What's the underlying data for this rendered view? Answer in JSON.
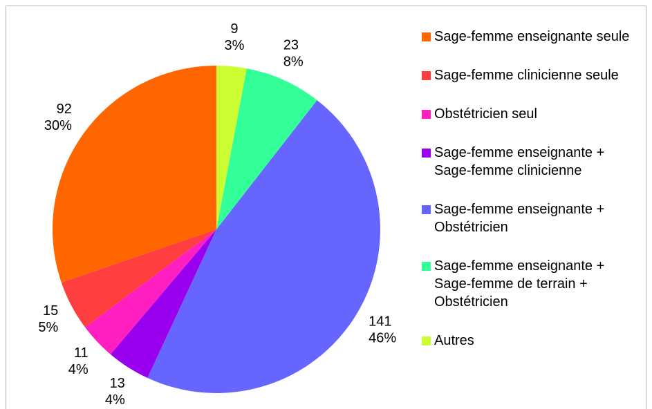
{
  "chart_data": {
    "type": "pie",
    "categories": [
      "Sage-femme enseignante seule",
      "Sage-femme clinicienne seule",
      "Obstétricien seul",
      "Sage-femme enseignante + Sage-femme clinicienne",
      "Sage-femme enseignante + Obstétricien",
      "Sage-femme enseignante + Sage-femme de terrain + Obstétricien",
      "Autres"
    ],
    "values": [
      92,
      15,
      11,
      13,
      141,
      23,
      9
    ],
    "percent_labels": [
      "30%",
      "5%",
      "4%",
      "4%",
      "46%",
      "8%",
      "3%"
    ],
    "colors": [
      "#ff6600",
      "#ff3f3f",
      "#ff1fc0",
      "#9900ee",
      "#6666ff",
      "#33ff99",
      "#ccff33"
    ],
    "legend": "right"
  }
}
